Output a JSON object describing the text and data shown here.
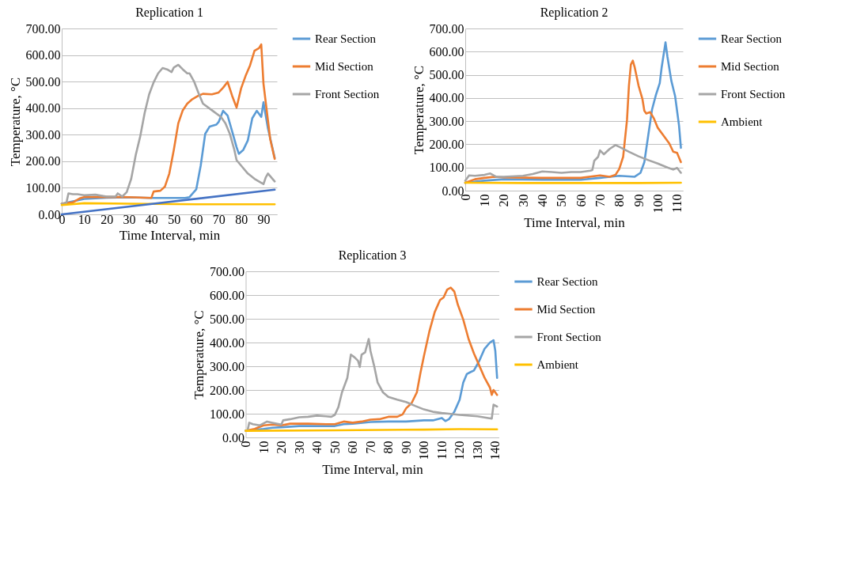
{
  "chart_data": [
    {
      "type": "line",
      "title": "Replication 1",
      "xlabel": "Time Interval, min",
      "ylabel": "Temperature, °C",
      "xlim": [
        0,
        96
      ],
      "xticks": [
        0,
        10,
        20,
        30,
        40,
        50,
        60,
        70,
        80,
        90
      ],
      "ylim": [
        0,
        700
      ],
      "yticks": [
        {
          "value": 0,
          "label": "0.00"
        },
        {
          "value": 100,
          "label": "100.00"
        },
        {
          "value": 200,
          "label": "200.00"
        },
        {
          "value": 300,
          "label": "300.00"
        },
        {
          "value": 400,
          "label": "400.00"
        },
        {
          "value": 500,
          "label": "500.00"
        },
        {
          "value": 600,
          "label": "600.00"
        },
        {
          "value": 700,
          "label": "700.00"
        }
      ],
      "grid": "y",
      "legend": "right",
      "series": [
        {
          "name": "Rear Section",
          "color": "#5b9bd5",
          "x": [
            0,
            10,
            20,
            30,
            40,
            55,
            57,
            60,
            62,
            64,
            66,
            69,
            70,
            72,
            74,
            76,
            78,
            79,
            81,
            83,
            85,
            87,
            89,
            90,
            91,
            92,
            95
          ],
          "values": [
            40,
            58,
            63,
            64,
            62,
            62,
            65,
            94,
            184,
            303,
            331,
            338,
            348,
            390,
            372,
            313,
            253,
            228,
            243,
            278,
            362,
            390,
            367,
            422,
            372,
            323,
            213
          ]
        },
        {
          "name": "Mid Section",
          "color": "#ed7d31",
          "x": [
            0,
            5,
            8,
            10,
            20,
            30,
            40,
            41,
            44,
            46,
            48,
            50,
            52,
            54,
            56,
            58,
            61,
            63,
            67,
            70,
            72,
            74,
            76,
            78,
            80,
            82,
            84,
            86,
            88,
            89,
            90,
            92,
            93,
            95
          ],
          "values": [
            40,
            45,
            60,
            65,
            66,
            65,
            62,
            86,
            89,
            104,
            154,
            243,
            343,
            392,
            417,
            432,
            447,
            454,
            452,
            459,
            477,
            499,
            447,
            402,
            474,
            521,
            561,
            616,
            626,
            640,
            492,
            353,
            283,
            209
          ]
        },
        {
          "name": "Front Section",
          "color": "#a5a5a5",
          "x": [
            0,
            2,
            3,
            5,
            7,
            10,
            15,
            20,
            24,
            25,
            27,
            29,
            31,
            33,
            35,
            37,
            39,
            41,
            43,
            45,
            47,
            49,
            50,
            52,
            54,
            56,
            57,
            59,
            61,
            63,
            67,
            71,
            73,
            75,
            77,
            78,
            80,
            83,
            86,
            89,
            90,
            91,
            92,
            95
          ],
          "values": [
            40,
            40,
            79,
            76,
            76,
            72,
            74,
            67,
            67,
            79,
            67,
            84,
            134,
            223,
            293,
            382,
            452,
            497,
            531,
            551,
            546,
            536,
            553,
            563,
            546,
            531,
            531,
            501,
            457,
            417,
            392,
            367,
            343,
            303,
            243,
            204,
            184,
            154,
            134,
            119,
            114,
            139,
            154,
            124
          ]
        },
        {
          "color": "#ffc000",
          "x": [
            0,
            10,
            30,
            60,
            95
          ],
          "values": [
            35,
            42,
            40,
            38,
            38
          ]
        },
        {
          "color": "#4472c4",
          "x": [
            0,
            95
          ],
          "values": [
            0,
            93
          ]
        }
      ]
    },
    {
      "type": "line",
      "title": "Replication 2",
      "xlabel": "Time Interval, min",
      "ylabel": "Temperature, °C",
      "xlim": [
        0,
        113
      ],
      "xticks": [
        0,
        10,
        20,
        30,
        40,
        50,
        60,
        70,
        80,
        90,
        100,
        110
      ],
      "ylim": [
        0,
        700
      ],
      "yticks": [
        {
          "value": 0,
          "label": "0.00"
        },
        {
          "value": 100,
          "label": "100.00"
        },
        {
          "value": 200,
          "label": "200.00"
        },
        {
          "value": 300,
          "label": "300.00"
        },
        {
          "value": 400,
          "label": "400.00"
        },
        {
          "value": 500,
          "label": "500.00"
        },
        {
          "value": 600,
          "label": "600.00"
        },
        {
          "value": 700,
          "label": "700.00"
        }
      ],
      "grid": "y",
      "legend": "right",
      "series": [
        {
          "name": "Rear Section",
          "color": "#5b9bd5",
          "x": [
            0,
            10,
            20,
            40,
            60,
            70,
            80,
            88,
            91,
            93,
            95,
            97,
            99,
            101,
            102,
            104,
            105,
            107,
            109,
            111,
            112
          ],
          "values": [
            34,
            43,
            49,
            47,
            47,
            55,
            64,
            60,
            77,
            123,
            237,
            350,
            413,
            464,
            532,
            640,
            578,
            475,
            407,
            282,
            185
          ]
        },
        {
          "name": "Mid Section",
          "color": "#ed7d31",
          "x": [
            0,
            5,
            10,
            15,
            20,
            40,
            60,
            70,
            75,
            78,
            80,
            82,
            84,
            85,
            86,
            87,
            88,
            90,
            92,
            93,
            94,
            96,
            98,
            100,
            103,
            106,
            108,
            110,
            112
          ],
          "values": [
            34,
            49,
            55,
            60,
            57,
            55,
            55,
            66,
            60,
            68,
            94,
            146,
            305,
            453,
            544,
            561,
            532,
            453,
            396,
            345,
            333,
            339,
            311,
            271,
            237,
            203,
            168,
            163,
            123
          ]
        },
        {
          "name": "Front Section",
          "color": "#a5a5a5",
          "x": [
            0,
            2,
            5,
            10,
            13,
            16,
            20,
            30,
            35,
            40,
            45,
            50,
            55,
            60,
            65,
            66,
            67,
            69,
            70,
            72,
            75,
            78,
            80,
            85,
            90,
            95,
            100,
            105,
            108,
            110,
            112
          ],
          "values": [
            43,
            66,
            64,
            68,
            74,
            60,
            60,
            64,
            72,
            83,
            80,
            77,
            80,
            80,
            86,
            89,
            129,
            146,
            174,
            157,
            180,
            197,
            189,
            168,
            148,
            132,
            117,
            100,
            91,
            98,
            77
          ]
        },
        {
          "name": "Ambient",
          "color": "#ffc000",
          "x": [
            0,
            30,
            60,
            90,
            112
          ],
          "values": [
            34,
            33,
            33,
            33,
            34
          ]
        }
      ]
    },
    {
      "type": "line",
      "title": "Replication 3",
      "xlabel": "Time Interval, min",
      "ylabel": "Temperature, °C",
      "xlim": [
        0,
        142
      ],
      "xticks": [
        0,
        10,
        20,
        30,
        40,
        50,
        60,
        70,
        80,
        90,
        100,
        110,
        120,
        130,
        140
      ],
      "ylim": [
        0,
        700
      ],
      "yticks": [
        {
          "value": 0,
          "label": "0.00"
        },
        {
          "value": 100,
          "label": "100.00"
        },
        {
          "value": 200,
          "label": "200.00"
        },
        {
          "value": 300,
          "label": "300.00"
        },
        {
          "value": 400,
          "label": "400.00"
        },
        {
          "value": 500,
          "label": "500.00"
        },
        {
          "value": 600,
          "label": "600.00"
        },
        {
          "value": 700,
          "label": "700.00"
        }
      ],
      "grid": "y",
      "legend": "right",
      "series": [
        {
          "name": "Rear Section",
          "color": "#5b9bd5",
          "x": [
            0,
            10,
            15,
            20,
            30,
            40,
            50,
            55,
            60,
            70,
            80,
            90,
            100,
            105,
            110,
            112,
            114,
            117,
            120,
            122,
            124,
            126,
            128,
            131,
            134,
            137,
            139,
            140,
            141
          ],
          "values": [
            28,
            36,
            41,
            43,
            48,
            48,
            48,
            56,
            58,
            65,
            67,
            67,
            72,
            72,
            82,
            69,
            77,
            108,
            159,
            231,
            267,
            275,
            282,
            323,
            374,
            400,
            410,
            364,
            251
          ]
        },
        {
          "name": "Mid Section",
          "color": "#ed7d31",
          "x": [
            0,
            5,
            10,
            15,
            20,
            25,
            35,
            45,
            50,
            55,
            60,
            65,
            70,
            75,
            80,
            85,
            88,
            90,
            93,
            96,
            98,
            100,
            103,
            106,
            109,
            111,
            113,
            115,
            117,
            119,
            122,
            125,
            128,
            131,
            134,
            137,
            138,
            139,
            141
          ],
          "values": [
            28,
            36,
            51,
            54,
            51,
            58,
            58,
            56,
            56,
            67,
            62,
            67,
            75,
            77,
            87,
            87,
            97,
            123,
            144,
            190,
            272,
            344,
            446,
            528,
            579,
            590,
            623,
            631,
            615,
            559,
            497,
            415,
            354,
            303,
            251,
            210,
            179,
            200,
            179
          ]
        },
        {
          "name": "Front Section",
          "color": "#a5a5a5",
          "x": [
            0,
            1,
            2,
            4,
            8,
            12,
            15,
            20,
            21,
            25,
            30,
            35,
            40,
            45,
            48,
            50,
            52,
            54,
            57,
            59,
            61,
            63,
            64,
            65,
            67,
            69,
            70,
            72,
            74,
            77,
            80,
            85,
            90,
            95,
            100,
            105,
            110,
            115,
            120,
            130,
            138,
            139,
            141
          ],
          "values": [
            28,
            28,
            62,
            56,
            51,
            67,
            62,
            54,
            72,
            77,
            85,
            87,
            92,
            89,
            87,
            95,
            128,
            190,
            251,
            349,
            338,
            323,
            297,
            349,
            359,
            415,
            364,
            303,
            231,
            190,
            171,
            159,
            149,
            133,
            118,
            108,
            103,
            99,
            95,
            89,
            79,
            138,
            130
          ]
        },
        {
          "name": "Ambient",
          "color": "#ffc000",
          "x": [
            0,
            50,
            100,
            120,
            141
          ],
          "values": [
            28,
            30,
            33,
            35,
            34
          ]
        }
      ]
    }
  ]
}
